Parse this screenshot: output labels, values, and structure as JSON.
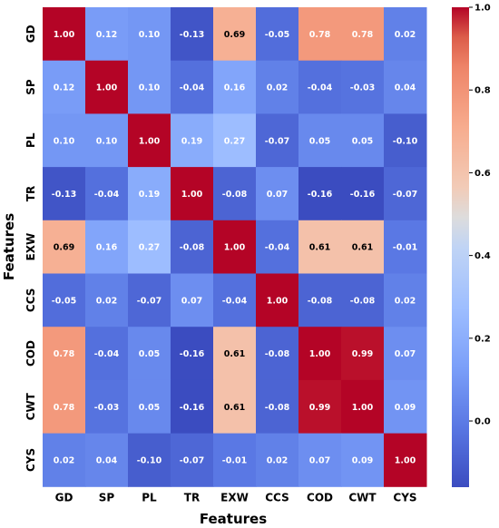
{
  "chart_data": {
    "type": "heatmap",
    "title": "",
    "xlabel": "Features",
    "ylabel": "Features",
    "x_categories": [
      "GD",
      "SP",
      "PL",
      "TR",
      "EXW",
      "CCS",
      "COD",
      "CWT",
      "CYS"
    ],
    "y_categories": [
      "GD",
      "SP",
      "PL",
      "TR",
      "EXW",
      "CCS",
      "COD",
      "CWT",
      "CYS"
    ],
    "values": [
      [
        1.0,
        0.12,
        0.1,
        -0.13,
        0.69,
        -0.05,
        0.78,
        0.78,
        0.02
      ],
      [
        0.12,
        1.0,
        0.1,
        -0.04,
        0.16,
        0.02,
        -0.04,
        -0.03,
        0.04
      ],
      [
        0.1,
        0.1,
        1.0,
        0.19,
        0.27,
        -0.07,
        0.05,
        0.05,
        -0.1
      ],
      [
        -0.13,
        -0.04,
        0.19,
        1.0,
        -0.08,
        0.07,
        -0.16,
        -0.16,
        -0.07
      ],
      [
        0.69,
        0.16,
        0.27,
        -0.08,
        1.0,
        -0.04,
        0.61,
        0.61,
        -0.01
      ],
      [
        -0.05,
        0.02,
        -0.07,
        0.07,
        -0.04,
        1.0,
        -0.08,
        -0.08,
        0.02
      ],
      [
        0.78,
        -0.04,
        0.05,
        -0.16,
        0.61,
        -0.08,
        1.0,
        0.99,
        0.07
      ],
      [
        0.78,
        -0.03,
        0.05,
        -0.16,
        0.61,
        -0.08,
        0.99,
        1.0,
        0.09
      ],
      [
        0.02,
        0.04,
        -0.1,
        -0.07,
        -0.01,
        0.02,
        0.07,
        0.09,
        1.0
      ]
    ],
    "value_format": "0.00",
    "colormap": "coolwarm",
    "vmin": -0.16,
    "vmax": 1.0,
    "colorbar_ticks": [
      0.0,
      0.2,
      0.4,
      0.6,
      0.8,
      1.0
    ],
    "colorbar_tick_labels": [
      "0.0",
      "0.2",
      "0.4",
      "0.6",
      "0.8",
      "1.0"
    ],
    "grid": false,
    "legend": "colorbar-right"
  }
}
